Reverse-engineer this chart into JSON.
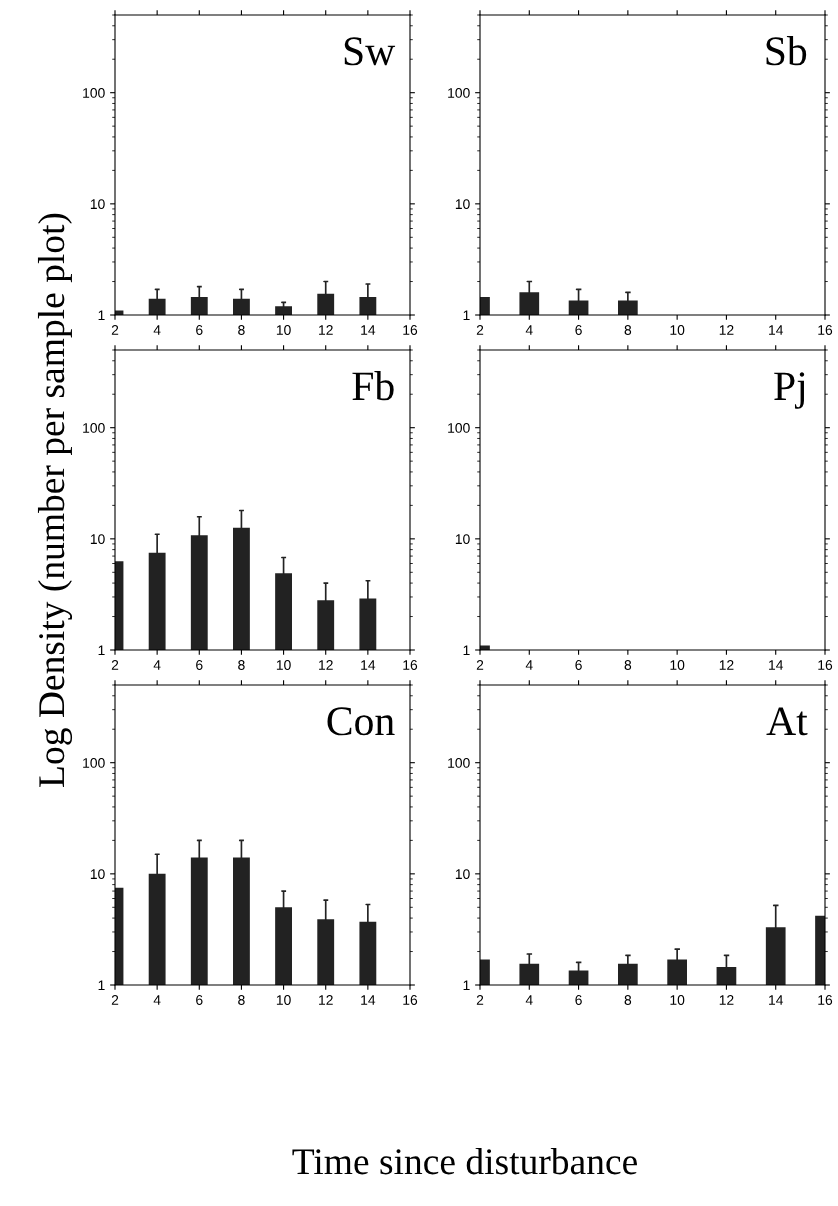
{
  "chart_data": [
    {
      "type": "bar",
      "title": "Sw",
      "x": [
        2,
        4,
        6,
        8,
        10,
        12,
        14
      ],
      "series": [
        {
          "color": "#222222",
          "values": [
            1.1,
            1.4,
            1.45,
            1.4,
            1.2,
            1.55,
            1.45
          ],
          "errors": [
            null,
            [
              1.4,
              1.7
            ],
            [
              1.45,
              1.8
            ],
            [
              1.4,
              1.7
            ],
            [
              1.2,
              1.3
            ],
            [
              1.55,
              2.0
            ],
            [
              1.45,
              1.9
            ]
          ]
        }
      ],
      "log": "y",
      "xlim": [
        2,
        16
      ],
      "xticks": [
        2,
        4,
        6,
        8,
        10,
        12,
        14,
        16
      ],
      "ylim": [
        1,
        500
      ],
      "yticks": [
        1,
        10,
        100
      ],
      "grid": false,
      "legend": false
    },
    {
      "type": "bar",
      "title": "Sb",
      "x": [
        2,
        4,
        6,
        8
      ],
      "series": [
        {
          "color": "#222222",
          "values": [
            1.45,
            1.6,
            1.35,
            1.35
          ],
          "errors": [
            null,
            [
              1.6,
              2.0
            ],
            [
              1.35,
              1.7
            ],
            [
              1.35,
              1.6
            ]
          ]
        }
      ],
      "log": "y",
      "xlim": [
        2,
        16
      ],
      "xticks": [
        2,
        4,
        6,
        8,
        10,
        12,
        14,
        16
      ],
      "ylim": [
        1,
        500
      ],
      "yticks": [
        1,
        10,
        100
      ],
      "grid": false,
      "legend": false
    },
    {
      "type": "bar",
      "title": "Fb",
      "ylabel": "Log Density (number per sample plot)",
      "x": [
        2,
        4,
        6,
        8,
        10,
        12,
        14
      ],
      "series": [
        {
          "color": "#222222",
          "values": [
            6.3,
            7.5,
            10.8,
            12.6,
            4.9,
            2.8,
            2.9
          ],
          "errors": [
            null,
            [
              7.5,
              11
            ],
            [
              10.8,
              15.8
            ],
            [
              12.6,
              18
            ],
            [
              4.9,
              6.8
            ],
            [
              2.8,
              4.0
            ],
            [
              2.9,
              4.2
            ]
          ]
        }
      ],
      "log": "y",
      "xlim": [
        2,
        16
      ],
      "xticks": [
        2,
        4,
        6,
        8,
        10,
        12,
        14,
        16
      ],
      "ylim": [
        1,
        500
      ],
      "yticks": [
        1,
        10,
        100
      ],
      "grid": false,
      "legend": false
    },
    {
      "type": "bar",
      "title": "Pj",
      "x": [
        2
      ],
      "series": [
        {
          "color": "#222222",
          "values": [
            1.1
          ]
        }
      ],
      "log": "y",
      "xlim": [
        2,
        16
      ],
      "xticks": [
        2,
        4,
        6,
        8,
        10,
        12,
        14,
        16
      ],
      "ylim": [
        1,
        500
      ],
      "yticks": [
        1,
        10,
        100
      ],
      "grid": false,
      "legend": false
    },
    {
      "type": "bar",
      "title": "Con",
      "xlabel": "Time since disturbance",
      "x": [
        2,
        4,
        6,
        8,
        10,
        12,
        14
      ],
      "series": [
        {
          "color": "#222222",
          "values": [
            7.5,
            10,
            14,
            14,
            5,
            3.9,
            3.7
          ],
          "errors": [
            null,
            [
              10,
              15
            ],
            [
              14,
              20
            ],
            [
              14,
              20
            ],
            [
              5,
              7
            ],
            [
              3.9,
              5.8
            ],
            [
              3.7,
              5.3
            ]
          ]
        }
      ],
      "log": "y",
      "xlim": [
        2,
        16
      ],
      "xticks": [
        2,
        4,
        6,
        8,
        10,
        12,
        14,
        16
      ],
      "ylim": [
        1,
        500
      ],
      "yticks": [
        1,
        10,
        100
      ],
      "grid": false,
      "legend": false
    },
    {
      "type": "bar",
      "title": "At",
      "x": [
        2,
        4,
        6,
        8,
        10,
        12,
        14,
        16
      ],
      "series": [
        {
          "color": "#222222",
          "values": [
            1.7,
            1.55,
            1.35,
            1.55,
            1.7,
            1.45,
            3.3,
            4.2
          ],
          "errors": [
            null,
            [
              1.55,
              1.9
            ],
            [
              1.35,
              1.6
            ],
            [
              1.55,
              1.85
            ],
            [
              1.7,
              2.1
            ],
            [
              1.45,
              1.85
            ],
            [
              3.3,
              5.2
            ],
            null
          ]
        }
      ],
      "log": "y",
      "xlim": [
        2,
        16
      ],
      "xticks": [
        2,
        4,
        6,
        8,
        10,
        12,
        14,
        16
      ],
      "ylim": [
        1,
        500
      ],
      "yticks": [
        1,
        10,
        100
      ],
      "grid": false,
      "legend": false
    }
  ]
}
